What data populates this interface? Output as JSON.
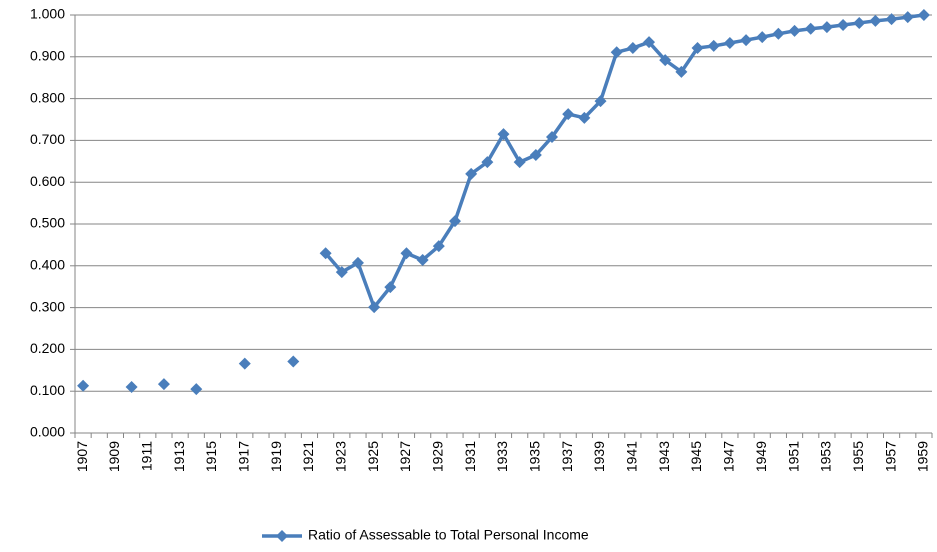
{
  "chart_data": {
    "type": "line",
    "categories": [
      "1907",
      null,
      "1909",
      null,
      "1911",
      null,
      "1913",
      null,
      "1915",
      null,
      "1917",
      null,
      "1919",
      null,
      "1921",
      null,
      "1923",
      null,
      "1925",
      null,
      "1927",
      null,
      "1929",
      null,
      "1931",
      null,
      "1933",
      null,
      "1935",
      null,
      "1937",
      null,
      "1939",
      null,
      "1941",
      null,
      "1943",
      null,
      "1945",
      null,
      "1947",
      null,
      "1949",
      null,
      "1951",
      null,
      "1953",
      null,
      "1955",
      null,
      "1957",
      null,
      "1959"
    ],
    "series": [
      {
        "name": "Ratio of Assessable to Total Personal Income",
        "color": "#4a7ebb",
        "values": [
          0.113,
          null,
          null,
          0.11,
          null,
          0.117,
          null,
          0.105,
          null,
          null,
          0.166,
          null,
          null,
          0.171,
          null,
          0.43,
          0.385,
          0.407,
          0.301,
          0.349,
          0.43,
          0.414,
          0.447,
          0.507,
          0.62,
          0.648,
          0.715,
          0.648,
          0.665,
          0.708,
          0.763,
          0.754,
          0.794,
          0.911,
          0.921,
          0.935,
          0.892,
          0.864,
          0.921,
          0.926,
          0.933,
          0.94,
          0.947,
          0.955,
          0.962,
          0.967,
          0.971,
          0.976,
          0.981,
          0.986,
          0.99,
          0.995,
          1.0
        ]
      }
    ],
    "ylim": [
      0,
      1
    ],
    "yticks": [
      {
        "value": 0,
        "label": "0.000"
      },
      {
        "value": 0.1,
        "label": "0.100"
      },
      {
        "value": 0.2,
        "label": "0.200"
      },
      {
        "value": 0.3,
        "label": "0.300"
      },
      {
        "value": 0.4,
        "label": "0.400"
      },
      {
        "value": 0.5,
        "label": "0.500"
      },
      {
        "value": 0.6,
        "label": "0.600"
      },
      {
        "value": 0.7,
        "label": "0.700"
      },
      {
        "value": 0.8,
        "label": "0.800"
      },
      {
        "value": 0.9,
        "label": "0.900"
      },
      {
        "value": 1,
        "label": "1.000"
      }
    ],
    "grid": true,
    "legend": "bottom"
  }
}
